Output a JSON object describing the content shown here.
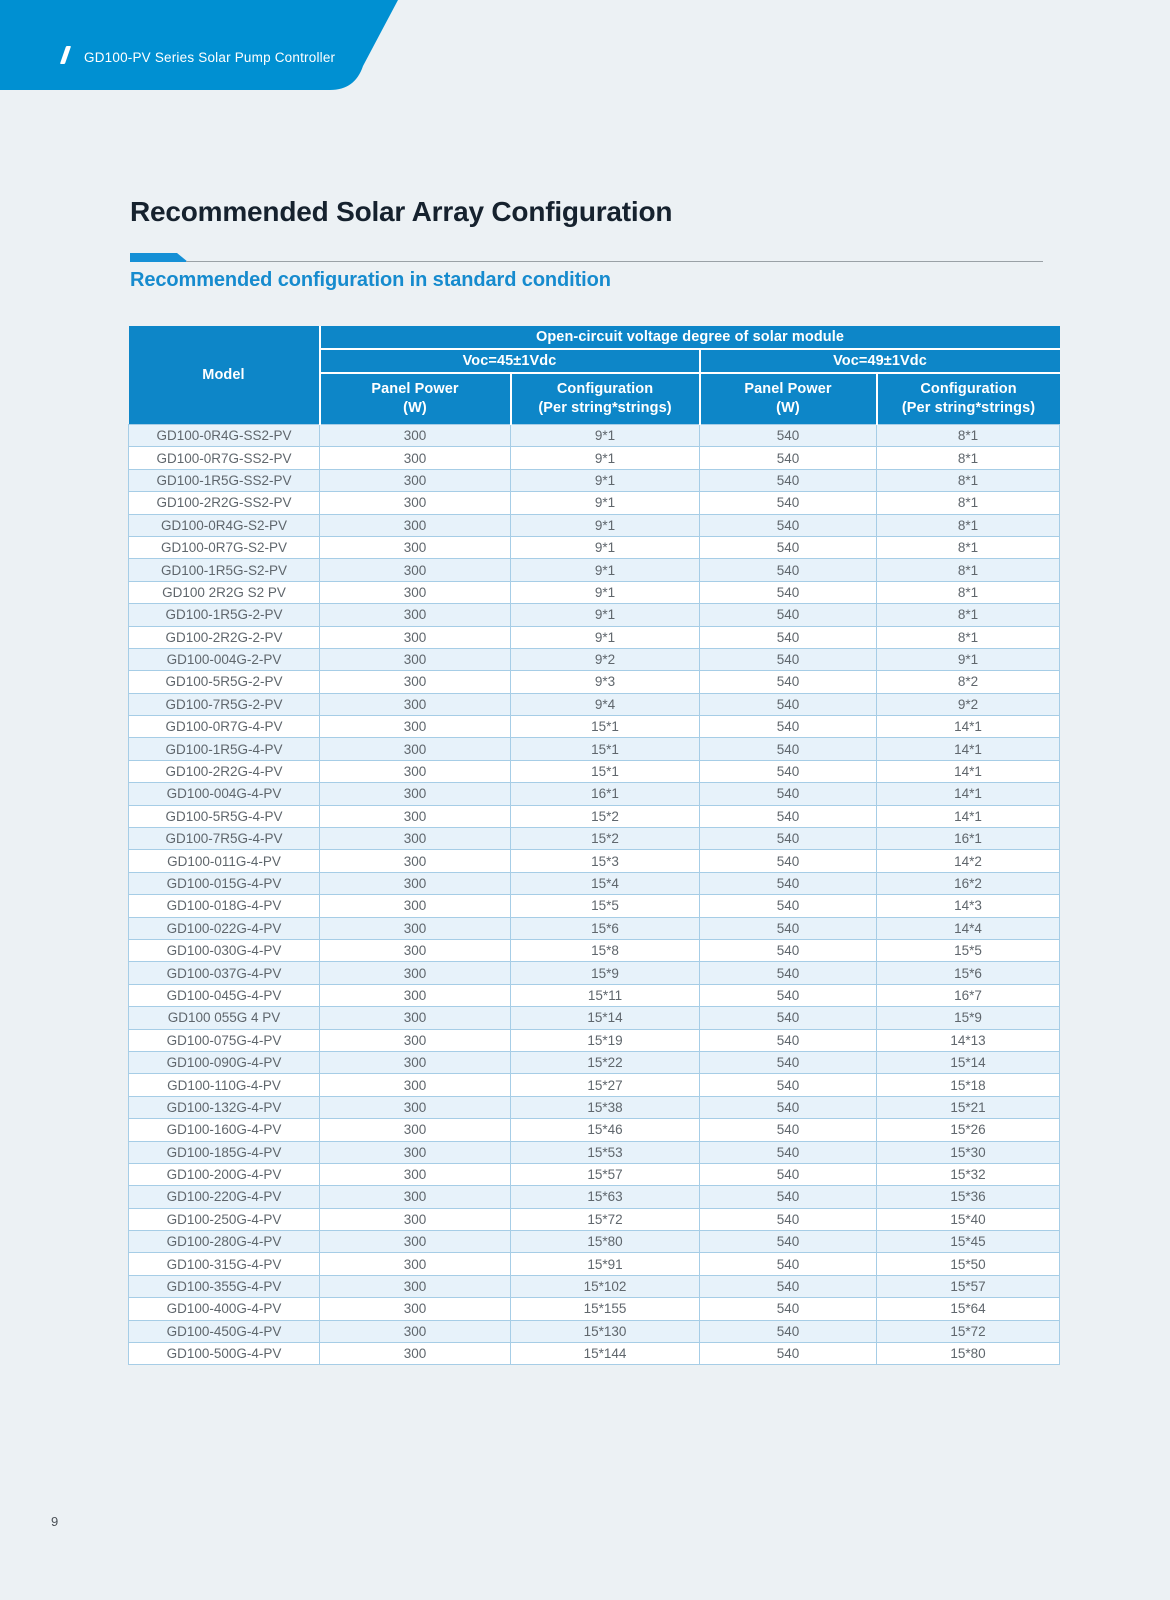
{
  "banner": {
    "title": "GD100-PV Series Solar Pump Controller",
    "slash_icon": "/"
  },
  "page": {
    "title": "Recommended Solar Array Configuration",
    "subtitle": "Recommended configuration in standard condition",
    "number": "9"
  },
  "colors": {
    "banner_blue": "#0090d2",
    "table_header_blue": "#0d86c8",
    "accent_blue": "#1590d6",
    "subtitle_blue": "#168bce",
    "row_alt_blue": "#e7f2fa",
    "page_background": "#ecf1f4"
  },
  "table": {
    "headers": {
      "model": "Model",
      "top": "Open-circuit voltage degree of solar module",
      "voc45": "Voc=45±1Vdc",
      "voc49": "Voc=49±1Vdc",
      "panel_power_line1": "Panel Power",
      "panel_power_line2": "(W)",
      "config_line1": "Configuration",
      "config_line2": "(Per string*strings)"
    },
    "rows": [
      [
        "GD100-0R4G-SS2-PV",
        "300",
        "9*1",
        "540",
        "8*1"
      ],
      [
        "GD100-0R7G-SS2-PV",
        "300",
        "9*1",
        "540",
        "8*1"
      ],
      [
        "GD100-1R5G-SS2-PV",
        "300",
        "9*1",
        "540",
        "8*1"
      ],
      [
        "GD100-2R2G-SS2-PV",
        "300",
        "9*1",
        "540",
        "8*1"
      ],
      [
        "GD100-0R4G-S2-PV",
        "300",
        "9*1",
        "540",
        "8*1"
      ],
      [
        "GD100-0R7G-S2-PV",
        "300",
        "9*1",
        "540",
        "8*1"
      ],
      [
        "GD100-1R5G-S2-PV",
        "300",
        "9*1",
        "540",
        "8*1"
      ],
      [
        "GD100 2R2G S2 PV",
        "300",
        "9*1",
        "540",
        "8*1"
      ],
      [
        "GD100-1R5G-2-PV",
        "300",
        "9*1",
        "540",
        "8*1"
      ],
      [
        "GD100-2R2G-2-PV",
        "300",
        "9*1",
        "540",
        "8*1"
      ],
      [
        "GD100-004G-2-PV",
        "300",
        "9*2",
        "540",
        "9*1"
      ],
      [
        "GD100-5R5G-2-PV",
        "300",
        "9*3",
        "540",
        "8*2"
      ],
      [
        "GD100-7R5G-2-PV",
        "300",
        "9*4",
        "540",
        "9*2"
      ],
      [
        "GD100-0R7G-4-PV",
        "300",
        "15*1",
        "540",
        "14*1"
      ],
      [
        "GD100-1R5G-4-PV",
        "300",
        "15*1",
        "540",
        "14*1"
      ],
      [
        "GD100-2R2G-4-PV",
        "300",
        "15*1",
        "540",
        "14*1"
      ],
      [
        "GD100-004G-4-PV",
        "300",
        "16*1",
        "540",
        "14*1"
      ],
      [
        "GD100-5R5G-4-PV",
        "300",
        "15*2",
        "540",
        "14*1"
      ],
      [
        "GD100-7R5G-4-PV",
        "300",
        "15*2",
        "540",
        "16*1"
      ],
      [
        "GD100-011G-4-PV",
        "300",
        "15*3",
        "540",
        "14*2"
      ],
      [
        "GD100-015G-4-PV",
        "300",
        "15*4",
        "540",
        "16*2"
      ],
      [
        "GD100-018G-4-PV",
        "300",
        "15*5",
        "540",
        "14*3"
      ],
      [
        "GD100-022G-4-PV",
        "300",
        "15*6",
        "540",
        "14*4"
      ],
      [
        "GD100-030G-4-PV",
        "300",
        "15*8",
        "540",
        "15*5"
      ],
      [
        "GD100-037G-4-PV",
        "300",
        "15*9",
        "540",
        "15*6"
      ],
      [
        "GD100-045G-4-PV",
        "300",
        "15*11",
        "540",
        "16*7"
      ],
      [
        "GD100 055G 4 PV",
        "300",
        "15*14",
        "540",
        "15*9"
      ],
      [
        "GD100-075G-4-PV",
        "300",
        "15*19",
        "540",
        "14*13"
      ],
      [
        "GD100-090G-4-PV",
        "300",
        "15*22",
        "540",
        "15*14"
      ],
      [
        "GD100-110G-4-PV",
        "300",
        "15*27",
        "540",
        "15*18"
      ],
      [
        "GD100-132G-4-PV",
        "300",
        "15*38",
        "540",
        "15*21"
      ],
      [
        "GD100-160G-4-PV",
        "300",
        "15*46",
        "540",
        "15*26"
      ],
      [
        "GD100-185G-4-PV",
        "300",
        "15*53",
        "540",
        "15*30"
      ],
      [
        "GD100-200G-4-PV",
        "300",
        "15*57",
        "540",
        "15*32"
      ],
      [
        "GD100-220G-4-PV",
        "300",
        "15*63",
        "540",
        "15*36"
      ],
      [
        "GD100-250G-4-PV",
        "300",
        "15*72",
        "540",
        "15*40"
      ],
      [
        "GD100-280G-4-PV",
        "300",
        "15*80",
        "540",
        "15*45"
      ],
      [
        "GD100-315G-4-PV",
        "300",
        "15*91",
        "540",
        "15*50"
      ],
      [
        "GD100-355G-4-PV",
        "300",
        "15*102",
        "540",
        "15*57"
      ],
      [
        "GD100-400G-4-PV",
        "300",
        "15*155",
        "540",
        "15*64"
      ],
      [
        "GD100-450G-4-PV",
        "300",
        "15*130",
        "540",
        "15*72"
      ],
      [
        "GD100-500G-4-PV",
        "300",
        "15*144",
        "540",
        "15*80"
      ]
    ]
  }
}
